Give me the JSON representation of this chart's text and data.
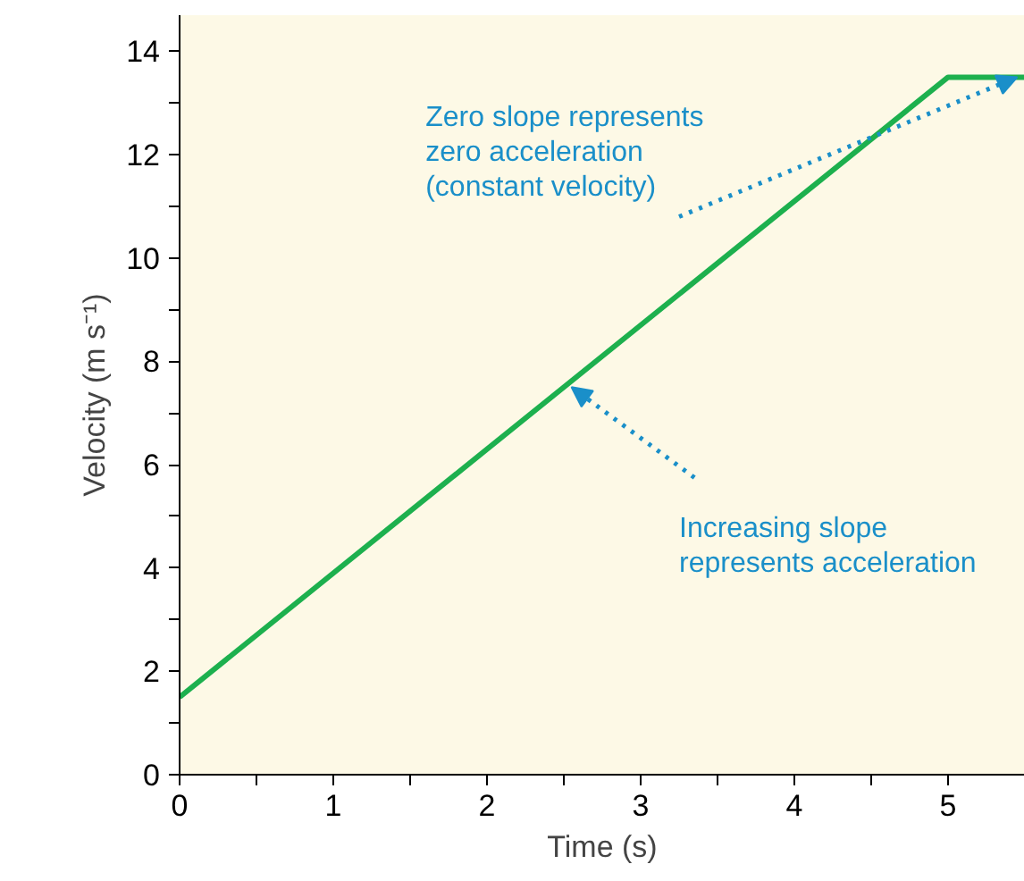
{
  "chart_data": {
    "type": "line",
    "xlabel": "Time (s)",
    "ylabel": "Velocity (m s⁻¹)",
    "x": [
      0,
      5,
      5.5
    ],
    "series": [
      {
        "color": "#1db04e",
        "values": [
          1.5,
          13.5,
          13.5
        ]
      }
    ],
    "xlim": [
      0,
      5.5
    ],
    "ylim": [
      0,
      14.7
    ],
    "xticks": [
      0,
      {
        "value": 0.5,
        "label": null
      },
      1,
      {
        "value": 1.5,
        "label": null
      },
      2,
      {
        "value": 2.5,
        "label": null
      },
      3,
      {
        "value": 3.5,
        "label": null
      },
      4,
      {
        "value": 4.5,
        "label": null
      },
      5
    ],
    "yticks": [
      0,
      {
        "value": 1,
        "label": null
      },
      2,
      {
        "value": 3,
        "label": null
      },
      4,
      {
        "value": 5,
        "label": null
      },
      6,
      {
        "value": 7,
        "label": null
      },
      8,
      {
        "value": 9,
        "label": null
      },
      10,
      {
        "value": 11,
        "label": null
      },
      12,
      {
        "value": 13,
        "label": null
      },
      14
    ],
    "grid": false,
    "line_style": "solid",
    "marker": "none",
    "annotations": [
      {
        "text": "Zero slope represents\nzero acceleration\n(constant velocity)",
        "x": 5.45,
        "y": 13.5
      },
      {
        "text": "Increasing slope\nrepresents acceleration",
        "x": 2.55,
        "y": 7.5
      }
    ]
  }
}
